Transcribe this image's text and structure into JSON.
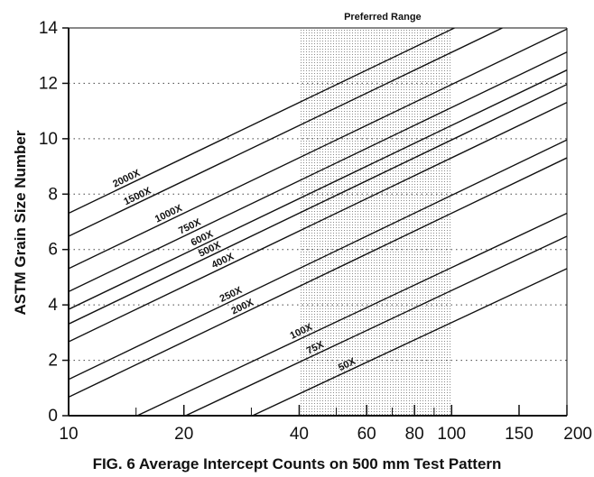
{
  "chart_data": {
    "type": "line",
    "title": "FIG. 6 Average Intercept Counts on 500 mm Test Pattern",
    "ylabel": "ASTM Grain Size Number",
    "xlabel": "",
    "x_scale": "log",
    "xlim": [
      10,
      200
    ],
    "ylim": [
      0,
      14
    ],
    "x_ticks": [
      10,
      20,
      40,
      60,
      80,
      100,
      150,
      200
    ],
    "y_ticks": [
      0,
      2,
      4,
      6,
      8,
      10,
      12,
      14
    ],
    "grid": "dotted horizontal at even y values",
    "shaded_region": {
      "label": "Preferred Range",
      "x": [
        40,
        100
      ]
    },
    "series": [
      {
        "name": "2000X",
        "x": [
          10,
          200
        ],
        "y": [
          7.31,
          15.95
        ]
      },
      {
        "name": "1500X",
        "x": [
          10,
          200
        ],
        "y": [
          6.48,
          15.12
        ]
      },
      {
        "name": "1000X",
        "x": [
          10,
          200
        ],
        "y": [
          5.31,
          13.96
        ]
      },
      {
        "name": "750X",
        "x": [
          10,
          200
        ],
        "y": [
          4.48,
          13.13
        ]
      },
      {
        "name": "600X",
        "x": [
          10,
          200
        ],
        "y": [
          3.84,
          12.48
        ]
      },
      {
        "name": "500X",
        "x": [
          10,
          200
        ],
        "y": [
          3.31,
          11.96
        ]
      },
      {
        "name": "400X",
        "x": [
          10,
          200
        ],
        "y": [
          2.67,
          11.31
        ]
      },
      {
        "name": "250X",
        "x": [
          10,
          200
        ],
        "y": [
          1.31,
          9.96
        ]
      },
      {
        "name": "200X",
        "x": [
          10,
          200
        ],
        "y": [
          0.67,
          9.31
        ]
      },
      {
        "name": "100X",
        "x": [
          15.1,
          200
        ],
        "y": [
          0,
          7.31
        ]
      },
      {
        "name": "75X",
        "x": [
          20.2,
          200
        ],
        "y": [
          0,
          6.48
        ]
      },
      {
        "name": "50X",
        "x": [
          30.2,
          200
        ],
        "y": [
          0,
          5.31
        ]
      }
    ],
    "line_labels": [
      {
        "text": "2000X",
        "x": 13.2
      },
      {
        "text": "1500X",
        "x": 14.1
      },
      {
        "text": "1000X",
        "x": 17.0
      },
      {
        "text": "750X",
        "x": 19.6
      },
      {
        "text": "600X",
        "x": 21.1
      },
      {
        "text": "500X",
        "x": 22.1
      },
      {
        "text": "400X",
        "x": 23.9
      },
      {
        "text": "250X",
        "x": 25.1
      },
      {
        "text": "200X",
        "x": 26.9
      },
      {
        "text": "100X",
        "x": 38.3
      },
      {
        "text": "75X",
        "x": 42.3
      },
      {
        "text": "50X",
        "x": 51.2
      }
    ],
    "colors": {
      "line": "#111111",
      "shade_dots": "#8a8a8a",
      "grid": "#444444"
    }
  }
}
